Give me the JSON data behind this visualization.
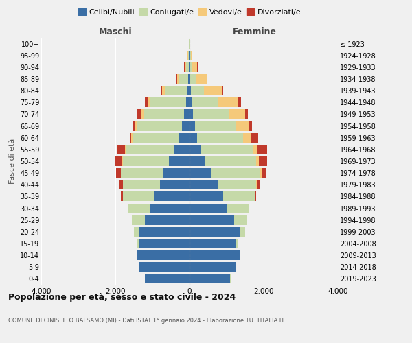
{
  "age_groups": [
    "0-4",
    "5-9",
    "10-14",
    "15-19",
    "20-24",
    "25-29",
    "30-34",
    "35-39",
    "40-44",
    "45-49",
    "50-54",
    "55-59",
    "60-64",
    "65-69",
    "70-74",
    "75-79",
    "80-84",
    "85-89",
    "90-94",
    "95-99",
    "100+"
  ],
  "birth_years": [
    "2019-2023",
    "2014-2018",
    "2009-2013",
    "2004-2008",
    "1999-2003",
    "1994-1998",
    "1989-1993",
    "1984-1988",
    "1979-1983",
    "1974-1978",
    "1969-1973",
    "1964-1968",
    "1959-1963",
    "1954-1958",
    "1949-1953",
    "1944-1948",
    "1939-1943",
    "1934-1938",
    "1929-1933",
    "1924-1928",
    "≤ 1923"
  ],
  "male_celibi": [
    1200,
    1350,
    1400,
    1350,
    1350,
    1200,
    1050,
    950,
    800,
    700,
    550,
    430,
    280,
    200,
    150,
    100,
    60,
    30,
    20,
    15,
    5
  ],
  "male_coniugati": [
    5,
    10,
    20,
    50,
    150,
    350,
    600,
    850,
    1000,
    1150,
    1250,
    1300,
    1250,
    1200,
    1100,
    950,
    600,
    250,
    80,
    25,
    5
  ],
  "male_vedovi": [
    0,
    0,
    0,
    0,
    1,
    1,
    2,
    3,
    5,
    10,
    15,
    20,
    35,
    55,
    70,
    80,
    80,
    60,
    30,
    10,
    2
  ],
  "male_divorziati": [
    0,
    0,
    0,
    0,
    5,
    10,
    20,
    50,
    80,
    130,
    200,
    200,
    50,
    60,
    80,
    80,
    20,
    15,
    10,
    5,
    1
  ],
  "female_celibi": [
    1100,
    1250,
    1350,
    1250,
    1350,
    1200,
    1000,
    900,
    750,
    600,
    400,
    300,
    200,
    140,
    100,
    60,
    35,
    20,
    15,
    15,
    5
  ],
  "female_coniugati": [
    5,
    10,
    20,
    60,
    150,
    350,
    600,
    850,
    1050,
    1300,
    1400,
    1400,
    1250,
    1100,
    950,
    700,
    350,
    150,
    60,
    15,
    3
  ],
  "female_vedovi": [
    0,
    0,
    0,
    0,
    1,
    2,
    5,
    10,
    20,
    40,
    70,
    120,
    200,
    380,
    450,
    550,
    500,
    300,
    130,
    30,
    5
  ],
  "female_divorziati": [
    0,
    0,
    0,
    0,
    5,
    5,
    15,
    30,
    70,
    130,
    220,
    280,
    200,
    60,
    80,
    80,
    30,
    20,
    10,
    5,
    0
  ],
  "colors": {
    "celibi": "#3a6ea5",
    "coniugati": "#c5d9a8",
    "vedovi": "#f5c97a",
    "divorziati": "#c0392b"
  },
  "title_main": "Popolazione per età, sesso e stato civile - 2024",
  "title_sub": "COMUNE DI CINISELLO BALSAMO (MI) - Dati ISTAT 1° gennaio 2024 - Elaborazione TUTTITALIA.IT",
  "xlim": 4000,
  "background_color": "#f0f0f0"
}
